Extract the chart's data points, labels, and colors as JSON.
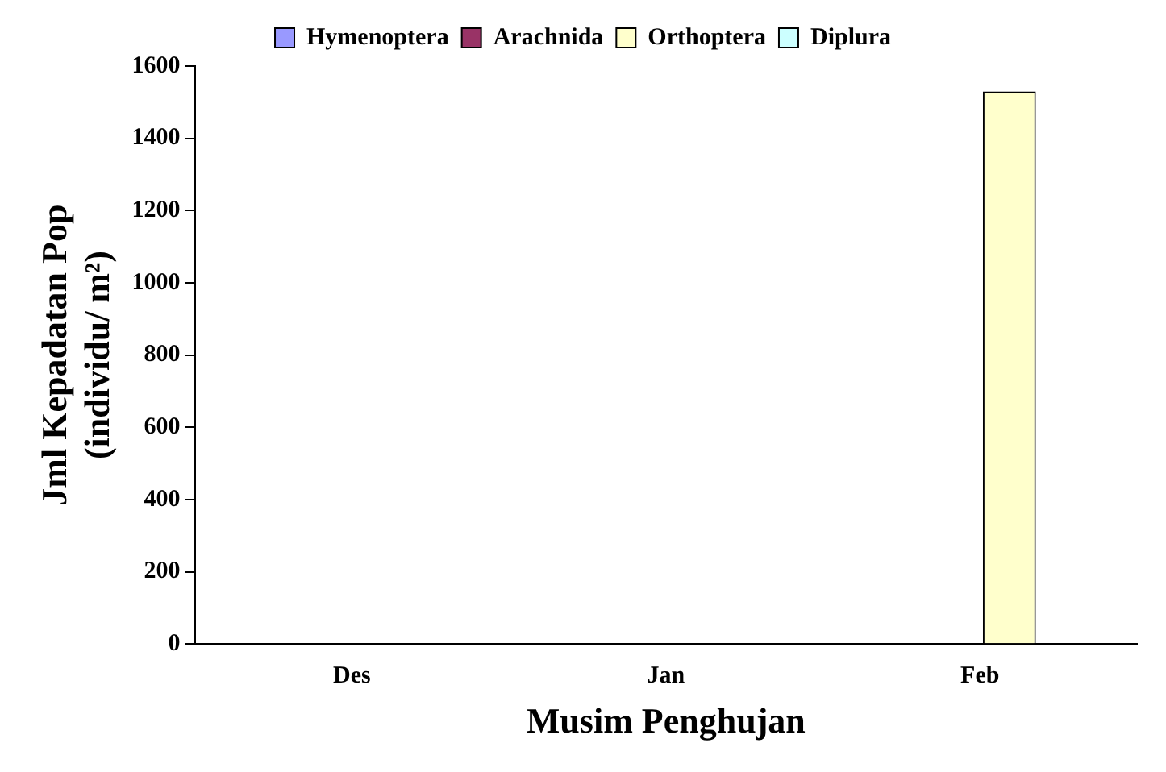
{
  "chart_data": {
    "type": "bar",
    "xlabel": "Musim Penghujan",
    "ylabel": [
      "Jml Kepadatan Pop",
      "(individu/ m²)"
    ],
    "categories": [
      "Des",
      "Jan",
      "Feb"
    ],
    "series": [
      {
        "name": "Hymenoptera",
        "color": "#9999ff",
        "values": [
          0,
          0,
          0
        ]
      },
      {
        "name": "Arachnida",
        "color": "#993366",
        "values": [
          0,
          0,
          0
        ]
      },
      {
        "name": "Orthoptera",
        "color": "#ffffcc",
        "values": [
          0,
          0,
          1530
        ]
      },
      {
        "name": "Diplura",
        "color": "#ccffff",
        "values": [
          0,
          0,
          0
        ]
      }
    ],
    "ylim": [
      0,
      1600
    ],
    "yticks": [
      0,
      200,
      400,
      600,
      800,
      1000,
      1200,
      1400,
      1600
    ],
    "grid": false,
    "legend": "top"
  }
}
